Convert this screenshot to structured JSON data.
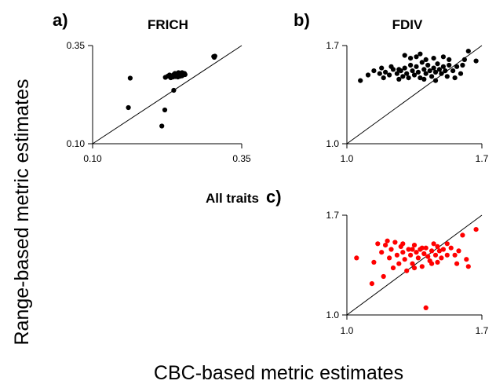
{
  "figure": {
    "ylabel": "Range-based metric estimates",
    "xlabel": "CBC-based metric estimates",
    "side_label": "All traits"
  },
  "chart_data": [
    {
      "type": "scatter",
      "panel_letter": "a)",
      "title": "FRICH",
      "xlim": [
        0.1,
        0.35
      ],
      "ylim": [
        0.1,
        0.35
      ],
      "x_ticks": [
        "0.10",
        "0.35"
      ],
      "y_ticks": [
        "0.10",
        "0.35"
      ],
      "reference_line": "1:1",
      "color": "#000000",
      "points": [
        {
          "x": 0.163,
          "y": 0.267
        },
        {
          "x": 0.16,
          "y": 0.192
        },
        {
          "x": 0.221,
          "y": 0.186
        },
        {
          "x": 0.216,
          "y": 0.145
        },
        {
          "x": 0.236,
          "y": 0.236
        },
        {
          "x": 0.222,
          "y": 0.269
        },
        {
          "x": 0.226,
          "y": 0.272
        },
        {
          "x": 0.229,
          "y": 0.275
        },
        {
          "x": 0.233,
          "y": 0.273
        },
        {
          "x": 0.236,
          "y": 0.276
        },
        {
          "x": 0.238,
          "y": 0.279
        },
        {
          "x": 0.241,
          "y": 0.277
        },
        {
          "x": 0.244,
          "y": 0.281
        },
        {
          "x": 0.246,
          "y": 0.278
        },
        {
          "x": 0.248,
          "y": 0.275
        },
        {
          "x": 0.25,
          "y": 0.281
        },
        {
          "x": 0.252,
          "y": 0.276
        },
        {
          "x": 0.254,
          "y": 0.279
        },
        {
          "x": 0.239,
          "y": 0.271
        },
        {
          "x": 0.243,
          "y": 0.27
        },
        {
          "x": 0.247,
          "y": 0.272
        },
        {
          "x": 0.231,
          "y": 0.268
        },
        {
          "x": 0.235,
          "y": 0.27
        },
        {
          "x": 0.255,
          "y": 0.276
        },
        {
          "x": 0.232,
          "y": 0.272
        },
        {
          "x": 0.25,
          "y": 0.273
        },
        {
          "x": 0.303,
          "y": 0.322
        },
        {
          "x": 0.305,
          "y": 0.323
        },
        {
          "x": 0.304,
          "y": 0.32
        }
      ]
    },
    {
      "type": "scatter",
      "panel_letter": "b)",
      "title": "FDIV",
      "xlim": [
        1.0,
        1.7
      ],
      "ylim": [
        1.0,
        1.7
      ],
      "x_ticks": [
        "1.0",
        "1.7"
      ],
      "y_ticks": [
        "1.0",
        "1.7"
      ],
      "reference_line": "1:1",
      "color": "#000000",
      "points": [
        {
          "x": 1.07,
          "y": 1.45
        },
        {
          "x": 1.11,
          "y": 1.49
        },
        {
          "x": 1.14,
          "y": 1.52
        },
        {
          "x": 1.17,
          "y": 1.5
        },
        {
          "x": 1.19,
          "y": 1.47
        },
        {
          "x": 1.2,
          "y": 1.51
        },
        {
          "x": 1.22,
          "y": 1.49
        },
        {
          "x": 1.24,
          "y": 1.53
        },
        {
          "x": 1.26,
          "y": 1.5
        },
        {
          "x": 1.27,
          "y": 1.46
        },
        {
          "x": 1.28,
          "y": 1.52
        },
        {
          "x": 1.29,
          "y": 1.48
        },
        {
          "x": 1.3,
          "y": 1.54
        },
        {
          "x": 1.31,
          "y": 1.5
        },
        {
          "x": 1.32,
          "y": 1.47
        },
        {
          "x": 1.33,
          "y": 1.56
        },
        {
          "x": 1.34,
          "y": 1.52
        },
        {
          "x": 1.35,
          "y": 1.49
        },
        {
          "x": 1.36,
          "y": 1.55
        },
        {
          "x": 1.37,
          "y": 1.51
        },
        {
          "x": 1.38,
          "y": 1.47
        },
        {
          "x": 1.39,
          "y": 1.58
        },
        {
          "x": 1.4,
          "y": 1.53
        },
        {
          "x": 1.41,
          "y": 1.5
        },
        {
          "x": 1.42,
          "y": 1.56
        },
        {
          "x": 1.43,
          "y": 1.52
        },
        {
          "x": 1.44,
          "y": 1.48
        },
        {
          "x": 1.45,
          "y": 1.54
        },
        {
          "x": 1.46,
          "y": 1.51
        },
        {
          "x": 1.47,
          "y": 1.57
        },
        {
          "x": 1.48,
          "y": 1.53
        },
        {
          "x": 1.49,
          "y": 1.5
        },
        {
          "x": 1.5,
          "y": 1.55
        },
        {
          "x": 1.51,
          "y": 1.52
        },
        {
          "x": 1.52,
          "y": 1.48
        },
        {
          "x": 1.53,
          "y": 1.56
        },
        {
          "x": 1.55,
          "y": 1.52
        },
        {
          "x": 1.57,
          "y": 1.55
        },
        {
          "x": 1.59,
          "y": 1.5
        },
        {
          "x": 1.61,
          "y": 1.6
        },
        {
          "x": 1.63,
          "y": 1.66
        },
        {
          "x": 1.67,
          "y": 1.59
        },
        {
          "x": 1.3,
          "y": 1.63
        },
        {
          "x": 1.33,
          "y": 1.61
        },
        {
          "x": 1.36,
          "y": 1.62
        },
        {
          "x": 1.38,
          "y": 1.64
        },
        {
          "x": 1.41,
          "y": 1.6
        },
        {
          "x": 1.45,
          "y": 1.61
        },
        {
          "x": 1.5,
          "y": 1.62
        },
        {
          "x": 1.53,
          "y": 1.6
        },
        {
          "x": 1.18,
          "y": 1.54
        },
        {
          "x": 1.23,
          "y": 1.55
        },
        {
          "x": 1.27,
          "y": 1.53
        },
        {
          "x": 1.4,
          "y": 1.46
        },
        {
          "x": 1.46,
          "y": 1.45
        },
        {
          "x": 1.56,
          "y": 1.47
        },
        {
          "x": 1.6,
          "y": 1.56
        }
      ]
    },
    {
      "type": "scatter",
      "panel_letter": "c)",
      "title": "",
      "xlim": [
        1.0,
        1.7
      ],
      "ylim": [
        1.0,
        1.7
      ],
      "x_ticks": [
        "1.0",
        "1.7"
      ],
      "y_ticks": [
        "1.0",
        "1.7"
      ],
      "reference_line": "1:1",
      "color": "#ff0000",
      "points": [
        {
          "x": 1.05,
          "y": 1.4
        },
        {
          "x": 1.13,
          "y": 1.22
        },
        {
          "x": 1.14,
          "y": 1.37
        },
        {
          "x": 1.16,
          "y": 1.5
        },
        {
          "x": 1.18,
          "y": 1.44
        },
        {
          "x": 1.19,
          "y": 1.27
        },
        {
          "x": 1.2,
          "y": 1.49
        },
        {
          "x": 1.22,
          "y": 1.4
        },
        {
          "x": 1.23,
          "y": 1.46
        },
        {
          "x": 1.24,
          "y": 1.33
        },
        {
          "x": 1.25,
          "y": 1.51
        },
        {
          "x": 1.26,
          "y": 1.42
        },
        {
          "x": 1.27,
          "y": 1.36
        },
        {
          "x": 1.28,
          "y": 1.48
        },
        {
          "x": 1.29,
          "y": 1.44
        },
        {
          "x": 1.3,
          "y": 1.39
        },
        {
          "x": 1.31,
          "y": 1.31
        },
        {
          "x": 1.32,
          "y": 1.46
        },
        {
          "x": 1.33,
          "y": 1.42
        },
        {
          "x": 1.34,
          "y": 1.36
        },
        {
          "x": 1.35,
          "y": 1.49
        },
        {
          "x": 1.36,
          "y": 1.44
        },
        {
          "x": 1.37,
          "y": 1.4
        },
        {
          "x": 1.38,
          "y": 1.46
        },
        {
          "x": 1.39,
          "y": 1.34
        },
        {
          "x": 1.4,
          "y": 1.43
        },
        {
          "x": 1.41,
          "y": 1.47
        },
        {
          "x": 1.42,
          "y": 1.41
        },
        {
          "x": 1.43,
          "y": 1.38
        },
        {
          "x": 1.44,
          "y": 1.45
        },
        {
          "x": 1.45,
          "y": 1.5
        },
        {
          "x": 1.46,
          "y": 1.42
        },
        {
          "x": 1.47,
          "y": 1.37
        },
        {
          "x": 1.48,
          "y": 1.45
        },
        {
          "x": 1.49,
          "y": 1.4
        },
        {
          "x": 1.5,
          "y": 1.46
        },
        {
          "x": 1.52,
          "y": 1.42
        },
        {
          "x": 1.54,
          "y": 1.47
        },
        {
          "x": 1.56,
          "y": 1.42
        },
        {
          "x": 1.58,
          "y": 1.45
        },
        {
          "x": 1.6,
          "y": 1.56
        },
        {
          "x": 1.62,
          "y": 1.39
        },
        {
          "x": 1.63,
          "y": 1.34
        },
        {
          "x": 1.67,
          "y": 1.6
        },
        {
          "x": 1.41,
          "y": 1.05
        },
        {
          "x": 1.21,
          "y": 1.52
        },
        {
          "x": 1.29,
          "y": 1.5
        },
        {
          "x": 1.35,
          "y": 1.33
        },
        {
          "x": 1.44,
          "y": 1.36
        },
        {
          "x": 1.52,
          "y": 1.5
        },
        {
          "x": 1.57,
          "y": 1.36
        },
        {
          "x": 1.34,
          "y": 1.46
        },
        {
          "x": 1.39,
          "y": 1.47
        },
        {
          "x": 1.47,
          "y": 1.48
        }
      ]
    }
  ]
}
